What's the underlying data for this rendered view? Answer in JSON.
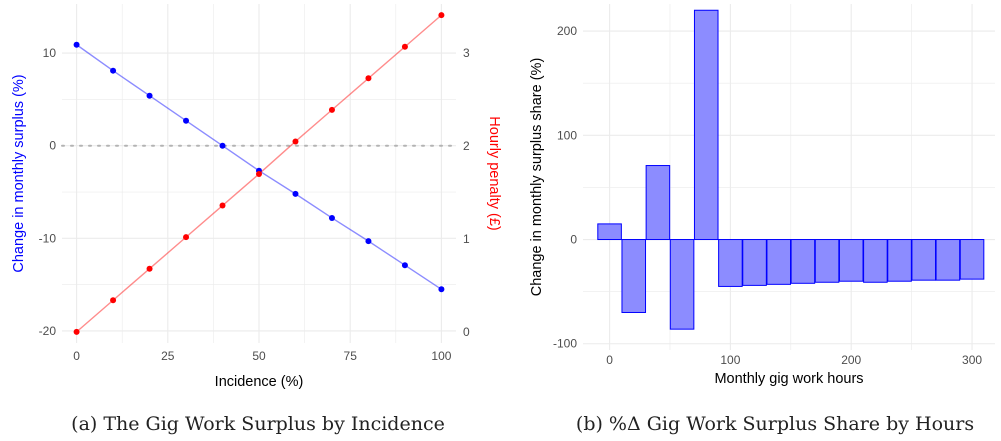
{
  "captions": {
    "a": "(a) The Gig Work Surplus by Incidence",
    "b": "(b) %Δ Gig Work Surplus Share by Hours"
  },
  "colors": {
    "blue": "#0000ff",
    "red": "#ff0000",
    "grid": "#ebebeb",
    "ref_line": "#b3b3b3"
  },
  "chart_data": [
    {
      "type": "line",
      "xlabel": "Incidence (%)",
      "ylabel": "Change in monthly surplus (%)",
      "y2label": "Hourly penalty (£)",
      "xlim": [
        -4,
        104
      ],
      "ylim": [
        -21.3,
        15.3
      ],
      "y2lim": [
        -0.12,
        3.53
      ],
      "xticks": [
        0,
        25,
        50,
        75,
        100
      ],
      "yticks": [
        -20,
        -10,
        0,
        10
      ],
      "y2ticks": [
        0,
        1,
        2,
        3
      ],
      "grid": true,
      "reference_line_y": 0,
      "x": [
        0,
        10,
        20,
        30,
        40,
        50,
        60,
        70,
        80,
        90,
        100
      ],
      "series": [
        {
          "axis": "left",
          "color": "#0000ff",
          "values": [
            10.9,
            8.1,
            5.4,
            2.7,
            0.0,
            -2.7,
            -5.2,
            -7.8,
            -10.3,
            -12.9,
            -15.5
          ]
        },
        {
          "axis": "right",
          "color": "#ff0000",
          "values": [
            0.0,
            0.34,
            0.68,
            1.02,
            1.36,
            1.7,
            2.05,
            2.39,
            2.73,
            3.07,
            3.41
          ]
        }
      ]
    },
    {
      "type": "bar",
      "xlabel": "Monthly gig work hours",
      "ylabel": "Change in monthly surplus share (%)",
      "xlim": [
        -22,
        319
      ],
      "ylim": [
        -106,
        226
      ],
      "xticks": [
        0,
        100,
        200,
        300
      ],
      "yticks": [
        -100,
        0,
        100,
        200
      ],
      "grid": true,
      "bar_width": 19.5,
      "fill": "#8c8cff",
      "stroke": "#0000ff",
      "x": [
        0,
        20,
        40,
        60,
        80,
        100,
        120,
        140,
        160,
        180,
        200,
        220,
        240,
        260,
        280,
        300
      ],
      "values": [
        15,
        -70,
        71,
        -86,
        220,
        -45,
        -44,
        -43,
        -42,
        -41,
        -40,
        -41,
        -40,
        -39,
        -39,
        -38
      ]
    }
  ]
}
